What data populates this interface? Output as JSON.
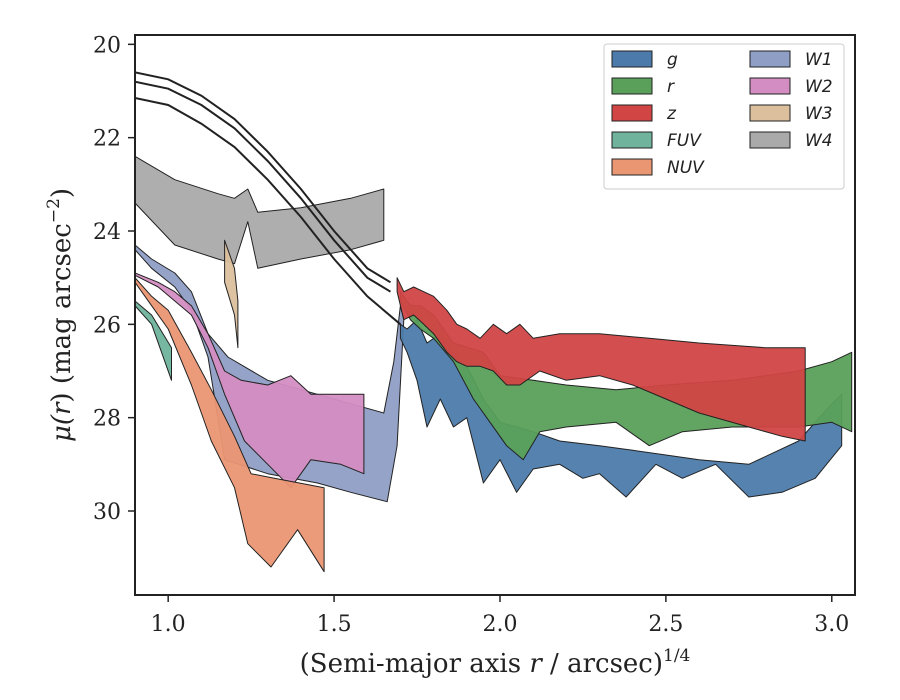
{
  "chart_data": {
    "type": "area",
    "xlabel_main": "(Semi-major axis ",
    "xlabel_var": "r",
    "xlabel_rest": " / arcsec)",
    "xlabel_sup": "1/4",
    "ylabel_main": "μ(",
    "ylabel_var": "r",
    "ylabel_rest": ") (mag arcsec",
    "ylabel_sup": "−2",
    "ylabel_close": ")",
    "xlim": [
      0.9,
      3.07
    ],
    "ylim": [
      31.8,
      19.8
    ],
    "y_inverted": true,
    "xticks": [
      1.0,
      1.5,
      2.0,
      2.5,
      3.0
    ],
    "xtick_labels": [
      "1.0",
      "1.5",
      "2.0",
      "2.5",
      "3.0"
    ],
    "yticks": [
      20,
      22,
      24,
      26,
      28,
      30
    ],
    "ytick_labels": [
      "20",
      "22",
      "24",
      "26",
      "28",
      "30"
    ],
    "grid": false,
    "legend_position": "top-right",
    "legend_columns": 2,
    "series": [
      {
        "name": "W4",
        "color": "#aaaaaa",
        "upper": [
          [
            0.9,
            22.4
          ],
          [
            1.02,
            22.9
          ],
          [
            1.15,
            23.2
          ],
          [
            1.2,
            23.3
          ],
          [
            1.24,
            23.1
          ],
          [
            1.27,
            23.6
          ],
          [
            1.4,
            23.5
          ],
          [
            1.55,
            23.3
          ],
          [
            1.65,
            23.1
          ]
        ],
        "lower": [
          [
            0.9,
            23.4
          ],
          [
            1.02,
            24.3
          ],
          [
            1.15,
            24.6
          ],
          [
            1.2,
            24.7
          ],
          [
            1.24,
            23.8
          ],
          [
            1.27,
            24.8
          ],
          [
            1.4,
            24.6
          ],
          [
            1.55,
            24.4
          ],
          [
            1.65,
            24.2
          ]
        ]
      },
      {
        "name": "W3",
        "color": "#dcc09e",
        "upper": [
          [
            1.17,
            24.2
          ],
          [
            1.2,
            24.8
          ],
          [
            1.21,
            25.5
          ]
        ],
        "lower": [
          [
            1.17,
            25.1
          ],
          [
            1.2,
            25.8
          ],
          [
            1.21,
            26.5
          ]
        ]
      },
      {
        "name": "W1",
        "color": "#8e9ec4",
        "upper": [
          [
            0.9,
            24.3
          ],
          [
            0.95,
            24.6
          ],
          [
            1.02,
            24.9
          ],
          [
            1.07,
            25.3
          ],
          [
            1.12,
            26.2
          ],
          [
            1.18,
            26.7
          ],
          [
            1.3,
            27.2
          ],
          [
            1.45,
            27.5
          ],
          [
            1.55,
            27.7
          ],
          [
            1.65,
            27.9
          ],
          [
            1.68,
            26.8
          ],
          [
            1.7,
            25.6
          ]
        ],
        "lower": [
          [
            0.9,
            24.4
          ],
          [
            0.95,
            24.8
          ],
          [
            1.02,
            25.2
          ],
          [
            1.07,
            25.7
          ],
          [
            1.12,
            26.7
          ],
          [
            1.17,
            28.9
          ],
          [
            1.3,
            29.2
          ],
          [
            1.45,
            29.4
          ],
          [
            1.55,
            29.6
          ],
          [
            1.66,
            29.8
          ],
          [
            1.69,
            28.6
          ],
          [
            1.71,
            25.9
          ]
        ]
      },
      {
        "name": "W2",
        "color": "#d48dc2",
        "upper": [
          [
            0.9,
            24.9
          ],
          [
            0.97,
            25.1
          ],
          [
            1.02,
            25.3
          ],
          [
            1.07,
            25.6
          ],
          [
            1.12,
            26.2
          ],
          [
            1.17,
            27.0
          ],
          [
            1.22,
            27.2
          ],
          [
            1.3,
            27.3
          ],
          [
            1.37,
            27.1
          ],
          [
            1.43,
            27.5
          ],
          [
            1.59,
            27.5
          ]
        ],
        "lower": [
          [
            0.9,
            24.95
          ],
          [
            0.97,
            25.2
          ],
          [
            1.02,
            25.5
          ],
          [
            1.07,
            25.8
          ],
          [
            1.12,
            26.5
          ],
          [
            1.17,
            27.5
          ],
          [
            1.23,
            28.5
          ],
          [
            1.3,
            29.0
          ],
          [
            1.37,
            29.5
          ],
          [
            1.43,
            28.9
          ],
          [
            1.52,
            29.0
          ],
          [
            1.59,
            29.2
          ]
        ]
      },
      {
        "name": "FUV",
        "color": "#6fb39c",
        "upper": [
          [
            0.9,
            25.5
          ],
          [
            0.95,
            25.8
          ],
          [
            1.01,
            26.5
          ]
        ],
        "lower": [
          [
            0.9,
            25.6
          ],
          [
            0.95,
            26.0
          ],
          [
            1.01,
            27.2
          ]
        ]
      },
      {
        "name": "NUV",
        "color": "#eb9673",
        "upper": [
          [
            0.9,
            25.0
          ],
          [
            0.95,
            25.4
          ],
          [
            1.0,
            25.7
          ],
          [
            1.07,
            26.6
          ],
          [
            1.13,
            27.4
          ],
          [
            1.2,
            28.4
          ],
          [
            1.25,
            29.2
          ],
          [
            1.32,
            29.3
          ],
          [
            1.47,
            29.5
          ]
        ],
        "lower": [
          [
            0.9,
            25.1
          ],
          [
            0.95,
            25.6
          ],
          [
            1.0,
            26.1
          ],
          [
            1.07,
            27.3
          ],
          [
            1.13,
            28.5
          ],
          [
            1.2,
            29.5
          ],
          [
            1.24,
            30.7
          ],
          [
            1.31,
            31.2
          ],
          [
            1.39,
            30.4
          ],
          [
            1.47,
            31.3
          ]
        ]
      },
      {
        "name": "g",
        "color": "#4c7bab",
        "upper": [
          [
            1.7,
            26.0
          ],
          [
            1.72,
            26.1
          ],
          [
            1.75,
            25.9
          ],
          [
            1.78,
            26.4
          ],
          [
            1.82,
            26.2
          ],
          [
            1.86,
            26.6
          ],
          [
            1.9,
            26.9
          ],
          [
            1.95,
            27.6
          ],
          [
            2.0,
            28.1
          ],
          [
            2.1,
            28.3
          ],
          [
            2.18,
            28.5
          ],
          [
            2.3,
            28.6
          ],
          [
            2.4,
            28.7
          ],
          [
            2.5,
            28.8
          ],
          [
            2.6,
            28.9
          ],
          [
            2.75,
            29.0
          ],
          [
            2.9,
            28.5
          ],
          [
            3.0,
            27.7
          ],
          [
            3.03,
            27.5
          ]
        ],
        "lower": [
          [
            1.7,
            26.3
          ],
          [
            1.72,
            26.6
          ],
          [
            1.75,
            27.2
          ],
          [
            1.78,
            28.2
          ],
          [
            1.82,
            27.6
          ],
          [
            1.86,
            28.2
          ],
          [
            1.9,
            28.0
          ],
          [
            1.95,
            29.4
          ],
          [
            2.0,
            28.9
          ],
          [
            2.05,
            29.6
          ],
          [
            2.1,
            29.1
          ],
          [
            2.18,
            29.0
          ],
          [
            2.25,
            29.3
          ],
          [
            2.3,
            29.2
          ],
          [
            2.38,
            29.7
          ],
          [
            2.47,
            29.0
          ],
          [
            2.55,
            29.3
          ],
          [
            2.65,
            29.0
          ],
          [
            2.75,
            29.7
          ],
          [
            2.85,
            29.6
          ],
          [
            2.95,
            29.3
          ],
          [
            3.03,
            28.6
          ]
        ]
      },
      {
        "name": "r",
        "color": "#5aa05a",
        "upper": [
          [
            1.7,
            25.3
          ],
          [
            1.73,
            25.6
          ],
          [
            1.76,
            25.6
          ],
          [
            1.8,
            25.8
          ],
          [
            1.86,
            26.4
          ],
          [
            1.95,
            26.6
          ],
          [
            2.0,
            27.1
          ],
          [
            2.1,
            27.2
          ],
          [
            2.2,
            27.3
          ],
          [
            2.35,
            27.4
          ],
          [
            2.5,
            27.3
          ],
          [
            2.7,
            27.2
          ],
          [
            2.9,
            27.0
          ],
          [
            3.0,
            26.8
          ],
          [
            3.06,
            26.6
          ]
        ],
        "lower": [
          [
            1.7,
            25.5
          ],
          [
            1.73,
            25.9
          ],
          [
            1.76,
            26.1
          ],
          [
            1.8,
            26.3
          ],
          [
            1.86,
            26.8
          ],
          [
            1.92,
            27.6
          ],
          [
            1.97,
            28.1
          ],
          [
            2.02,
            28.6
          ],
          [
            2.07,
            28.9
          ],
          [
            2.12,
            28.3
          ],
          [
            2.2,
            28.2
          ],
          [
            2.35,
            28.1
          ],
          [
            2.45,
            28.6
          ],
          [
            2.55,
            28.3
          ],
          [
            2.7,
            28.2
          ],
          [
            2.9,
            28.2
          ],
          [
            3.0,
            28.1
          ],
          [
            3.06,
            28.3
          ]
        ]
      },
      {
        "name": "z",
        "color": "#d14545",
        "upper": [
          [
            1.69,
            25.0
          ],
          [
            1.71,
            25.3
          ],
          [
            1.74,
            25.2
          ],
          [
            1.77,
            25.3
          ],
          [
            1.8,
            25.4
          ],
          [
            1.84,
            25.7
          ],
          [
            1.87,
            26.0
          ],
          [
            1.9,
            26.1
          ],
          [
            1.94,
            26.3
          ],
          [
            1.98,
            26.0
          ],
          [
            2.02,
            26.2
          ],
          [
            2.06,
            26.0
          ],
          [
            2.1,
            26.3
          ],
          [
            2.18,
            26.2
          ],
          [
            2.3,
            26.2
          ],
          [
            2.45,
            26.3
          ],
          [
            2.6,
            26.4
          ],
          [
            2.8,
            26.5
          ],
          [
            2.92,
            26.5
          ]
        ],
        "lower": [
          [
            1.69,
            25.3
          ],
          [
            1.71,
            25.9
          ],
          [
            1.74,
            25.8
          ],
          [
            1.77,
            26.0
          ],
          [
            1.8,
            26.2
          ],
          [
            1.84,
            26.6
          ],
          [
            1.87,
            26.8
          ],
          [
            1.9,
            26.9
          ],
          [
            1.94,
            26.9
          ],
          [
            1.98,
            27.0
          ],
          [
            2.02,
            27.3
          ],
          [
            2.06,
            27.3
          ],
          [
            2.12,
            27.0
          ],
          [
            2.2,
            27.2
          ],
          [
            2.3,
            27.1
          ],
          [
            2.4,
            27.3
          ],
          [
            2.5,
            27.6
          ],
          [
            2.6,
            27.9
          ],
          [
            2.75,
            28.2
          ],
          [
            2.85,
            28.4
          ],
          [
            2.92,
            28.5
          ]
        ]
      }
    ],
    "top_curves": [
      {
        "name": "z-upper",
        "pts": [
          [
            0.9,
            20.6
          ],
          [
            1.0,
            20.75
          ],
          [
            1.1,
            21.1
          ],
          [
            1.2,
            21.6
          ],
          [
            1.3,
            22.3
          ],
          [
            1.4,
            23.1
          ],
          [
            1.5,
            24.0
          ],
          [
            1.6,
            24.8
          ],
          [
            1.67,
            25.1
          ]
        ]
      },
      {
        "name": "r-upper",
        "pts": [
          [
            0.9,
            20.8
          ],
          [
            1.0,
            20.95
          ],
          [
            1.1,
            21.3
          ],
          [
            1.2,
            21.8
          ],
          [
            1.3,
            22.5
          ],
          [
            1.4,
            23.3
          ],
          [
            1.5,
            24.2
          ],
          [
            1.6,
            25.0
          ],
          [
            1.67,
            25.3
          ]
        ]
      },
      {
        "name": "g-upper",
        "pts": [
          [
            0.9,
            21.15
          ],
          [
            1.0,
            21.3
          ],
          [
            1.1,
            21.7
          ],
          [
            1.2,
            22.2
          ],
          [
            1.3,
            22.9
          ],
          [
            1.4,
            23.7
          ],
          [
            1.5,
            24.6
          ],
          [
            1.6,
            25.4
          ],
          [
            1.7,
            26.0
          ]
        ]
      }
    ],
    "legend_order": [
      "g",
      "r",
      "z",
      "FUV",
      "NUV",
      "W1",
      "W2",
      "W3",
      "W4"
    ]
  }
}
